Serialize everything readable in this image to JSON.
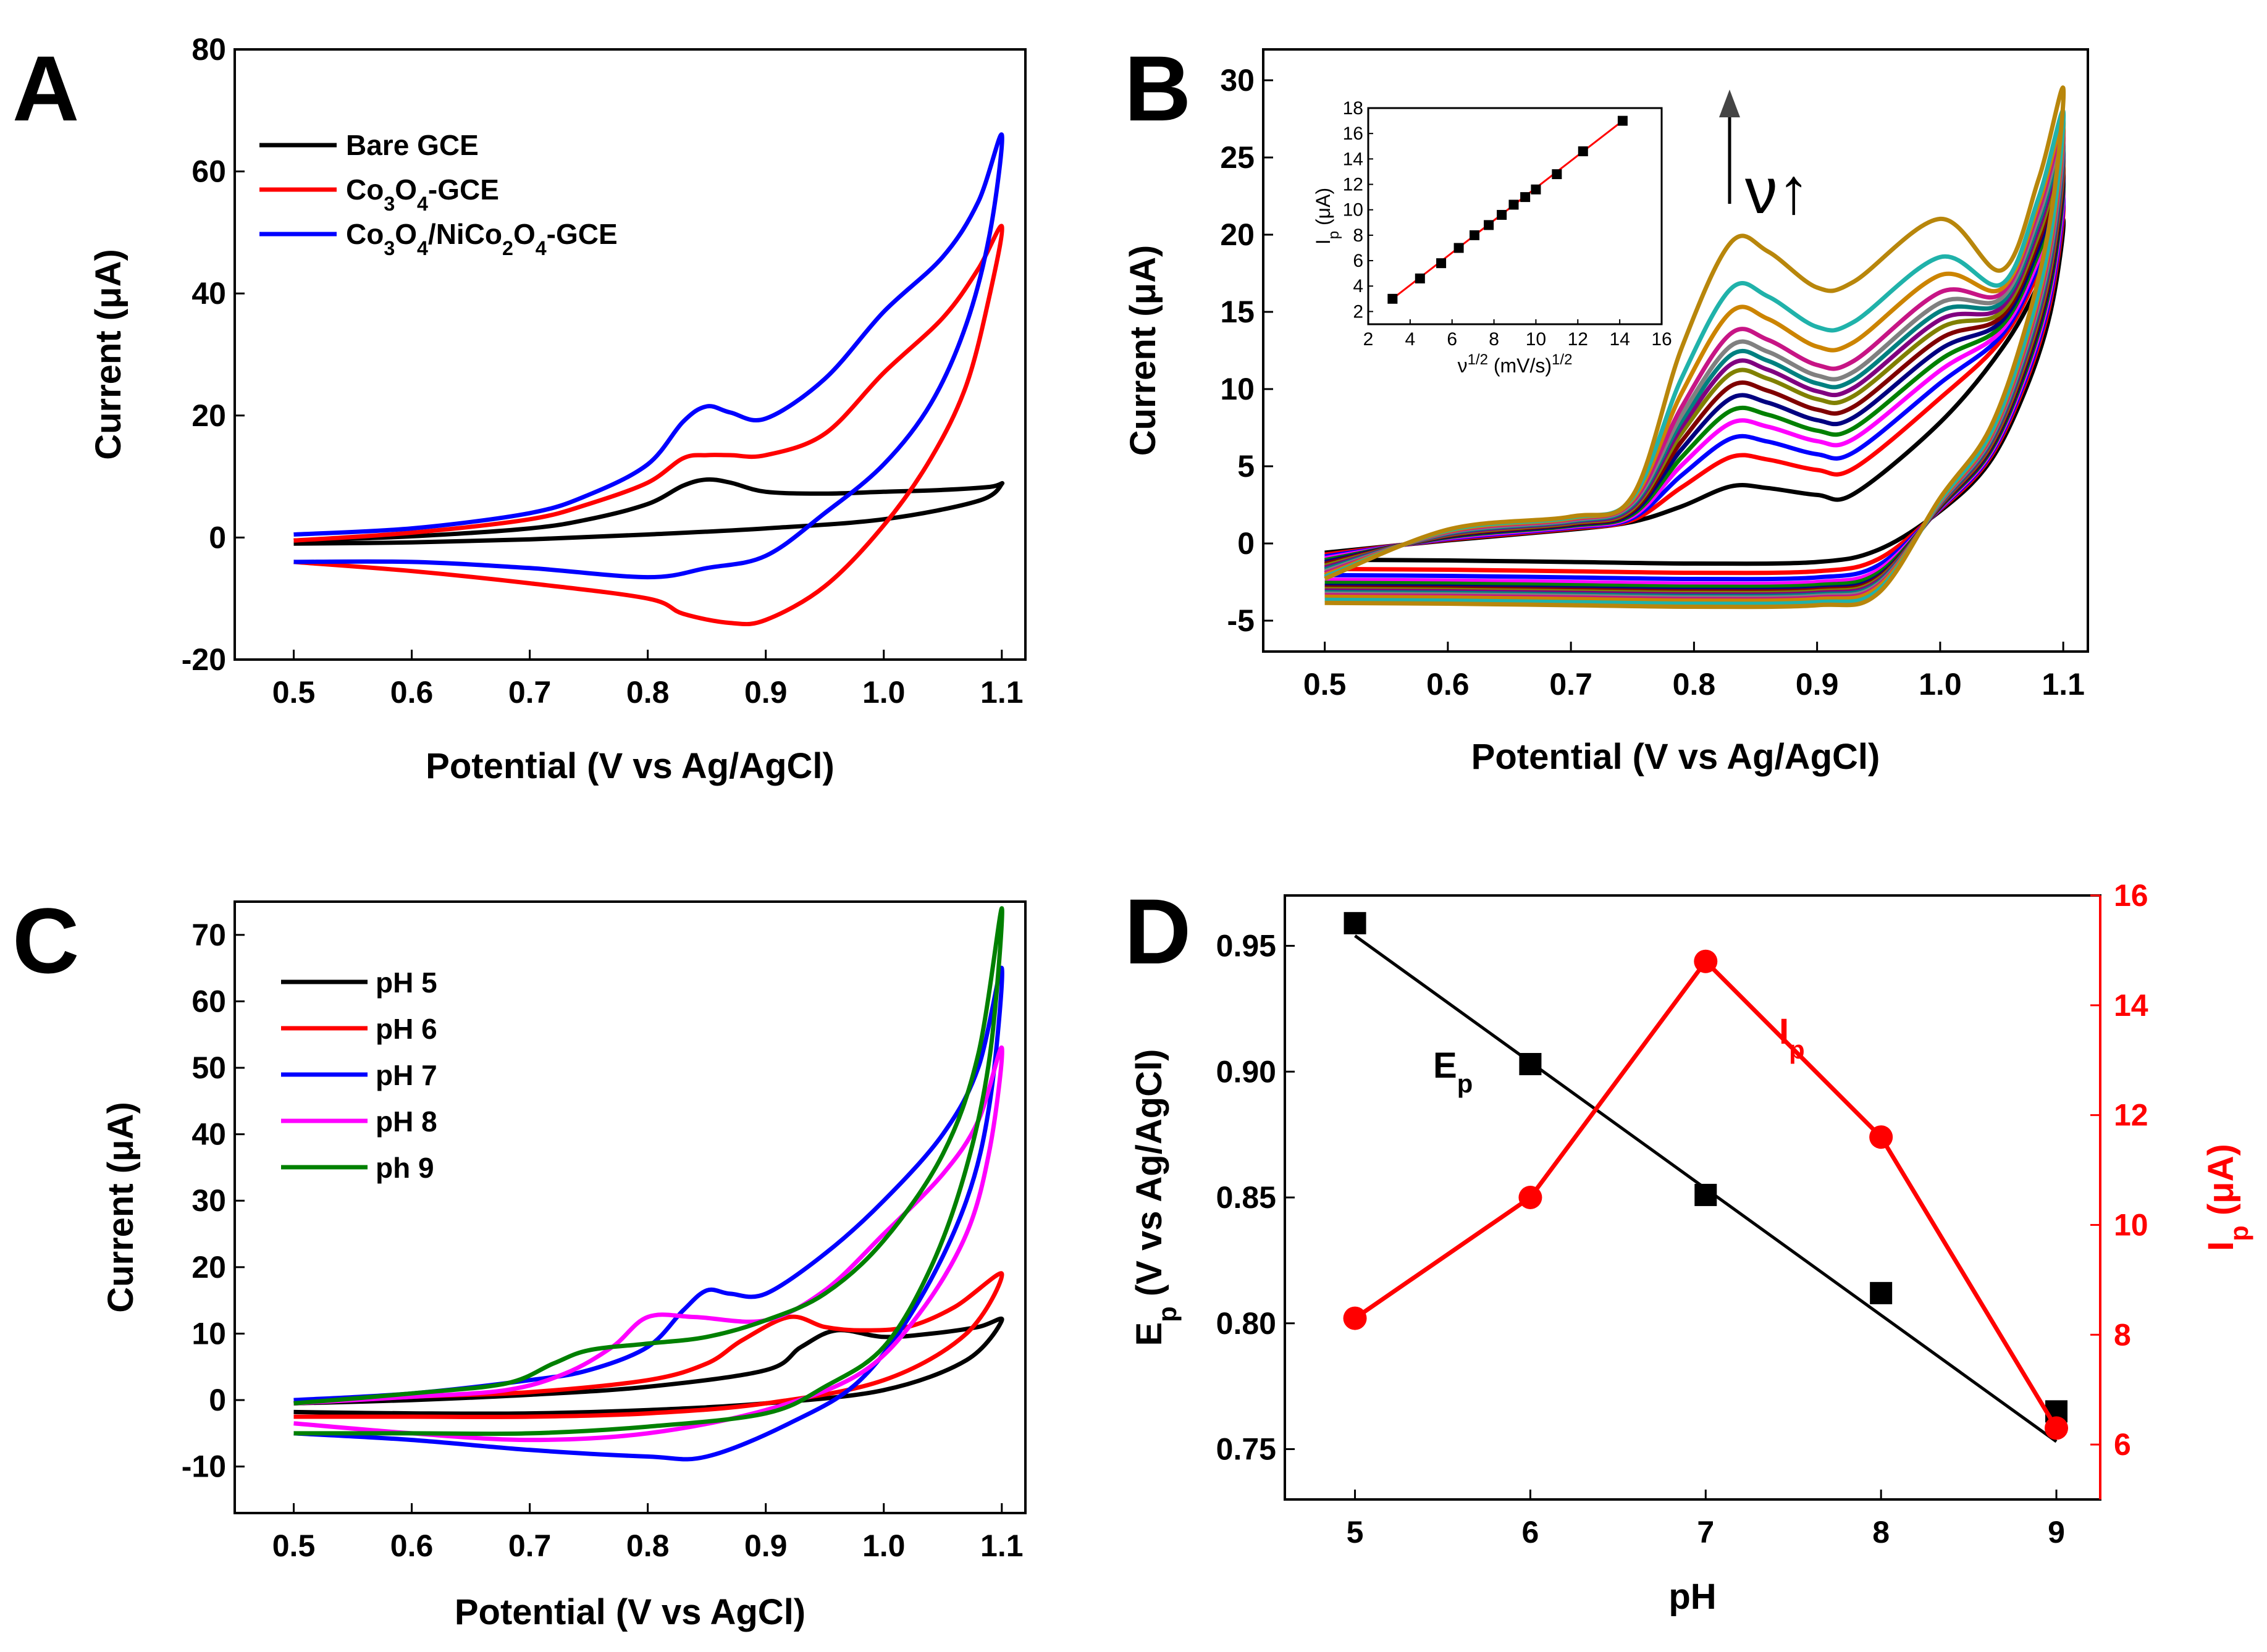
{
  "chart_data": [
    {
      "panel": "A",
      "type": "line",
      "title": "",
      "xlabel": "Potential (V vs Ag/AgCl)",
      "ylabel": "Current (μA)",
      "xlim": [
        0.45,
        1.12
      ],
      "ylim": [
        -20,
        80
      ],
      "xticks": [
        0.5,
        0.6,
        0.7,
        0.8,
        0.9,
        1.0,
        1.1
      ],
      "yticks": [
        -20,
        0,
        20,
        40,
        60,
        80
      ],
      "legend": [
        "Bare GCE",
        "Co3O4-GCE",
        "Co3O4/NiCo2O4-GCE"
      ],
      "series": [
        {
          "name": "Bare GCE",
          "color": "#000000",
          "forward": [
            [
              0.5,
              -0.5
            ],
            [
              0.6,
              0.2
            ],
            [
              0.7,
              1.5
            ],
            [
              0.75,
              3.0
            ],
            [
              0.8,
              5.5
            ],
            [
              0.83,
              8.5
            ],
            [
              0.85,
              9.5
            ],
            [
              0.87,
              9.0
            ],
            [
              0.9,
              7.5
            ],
            [
              0.95,
              7.2
            ],
            [
              1.0,
              7.5
            ],
            [
              1.05,
              7.8
            ],
            [
              1.09,
              8.3
            ],
            [
              1.1,
              8.8
            ]
          ],
          "reverse": [
            [
              1.1,
              8.8
            ],
            [
              1.08,
              6.0
            ],
            [
              1.0,
              3.0
            ],
            [
              0.9,
              1.5
            ],
            [
              0.8,
              0.5
            ],
            [
              0.7,
              -0.3
            ],
            [
              0.6,
              -0.8
            ],
            [
              0.5,
              -1.0
            ]
          ]
        },
        {
          "name": "Co3O4-GCE",
          "color": "#ff0000",
          "forward": [
            [
              0.5,
              -0.5
            ],
            [
              0.6,
              0.8
            ],
            [
              0.7,
              3.0
            ],
            [
              0.75,
              5.5
            ],
            [
              0.8,
              9.0
            ],
            [
              0.83,
              13.0
            ],
            [
              0.85,
              13.5
            ],
            [
              0.87,
              13.5
            ],
            [
              0.9,
              13.5
            ],
            [
              0.95,
              17.0
            ],
            [
              1.0,
              27.0
            ],
            [
              1.05,
              36.0
            ],
            [
              1.08,
              44.0
            ],
            [
              1.1,
              51.0
            ]
          ],
          "reverse": [
            [
              1.1,
              51.0
            ],
            [
              1.09,
              40.0
            ],
            [
              1.07,
              25.0
            ],
            [
              1.04,
              13.0
            ],
            [
              1.0,
              2.0
            ],
            [
              0.95,
              -8.0
            ],
            [
              0.9,
              -13.5
            ],
            [
              0.87,
              -14.0
            ],
            [
              0.83,
              -12.5
            ],
            [
              0.8,
              -10.0
            ],
            [
              0.7,
              -7.5
            ],
            [
              0.6,
              -5.5
            ],
            [
              0.5,
              -4.0
            ]
          ]
        },
        {
          "name": "Co3O4/NiCo2O4-GCE",
          "color": "#0000ff",
          "forward": [
            [
              0.5,
              0.5
            ],
            [
              0.6,
              1.5
            ],
            [
              0.7,
              4.0
            ],
            [
              0.75,
              7.0
            ],
            [
              0.8,
              12.0
            ],
            [
              0.83,
              19.0
            ],
            [
              0.85,
              21.5
            ],
            [
              0.87,
              20.5
            ],
            [
              0.9,
              19.5
            ],
            [
              0.95,
              26.0
            ],
            [
              1.0,
              37.0
            ],
            [
              1.05,
              46.0
            ],
            [
              1.08,
              55.0
            ],
            [
              1.1,
              66.0
            ]
          ],
          "reverse": [
            [
              1.1,
              66.0
            ],
            [
              1.09,
              50.0
            ],
            [
              1.07,
              35.0
            ],
            [
              1.04,
              22.0
            ],
            [
              1.0,
              12.0
            ],
            [
              0.95,
              4.0
            ],
            [
              0.9,
              -3.0
            ],
            [
              0.85,
              -5.0
            ],
            [
              0.8,
              -6.5
            ],
            [
              0.7,
              -5.0
            ],
            [
              0.6,
              -4.0
            ],
            [
              0.5,
              -4.0
            ]
          ]
        }
      ]
    },
    {
      "panel": "B",
      "type": "line",
      "title": "",
      "xlabel": "Potential (V vs Ag/AgCl)",
      "ylabel": "Current (μA)",
      "xlim": [
        0.45,
        1.12
      ],
      "ylim": [
        -7,
        32
      ],
      "xticks": [
        0.5,
        0.6,
        0.7,
        0.8,
        0.9,
        1.0,
        1.1
      ],
      "yticks": [
        -5,
        0,
        5,
        10,
        15,
        20,
        25,
        30
      ],
      "annotation": "ν↑",
      "series_note": "cyclic voltammograms at increasing scan rate ν",
      "curve_colors": [
        "#000000",
        "#ff0000",
        "#0000ff",
        "#ff00ff",
        "#008000",
        "#000080",
        "#800000",
        "#808000",
        "#800080",
        "#008080",
        "#808080",
        "#c71585",
        "#cc8400",
        "#20b2aa",
        "#b8860b"
      ],
      "peak_currents": [
        3.7,
        5.6,
        6.8,
        7.8,
        8.6,
        9.4,
        10.2,
        11.0,
        11.6,
        12.2,
        12.8,
        13.6,
        15.0,
        16.5,
        19.5
      ],
      "cathodic_baseline": [
        -1.2,
        -1.8,
        -2.2,
        -2.5,
        -2.7,
        -2.9,
        -3.0,
        -3.1,
        -3.2,
        -3.3,
        -3.4,
        -3.5,
        -3.6,
        -3.8,
        -4.0
      ],
      "end_currents": [
        21,
        22,
        22.5,
        23,
        23.5,
        24,
        24.5,
        25,
        25.5,
        26,
        26.5,
        27,
        27.5,
        28,
        29.5
      ],
      "inset": {
        "type": "scatter+fit",
        "xlabel": "ν1/2 (mV/s)1/2",
        "ylabel": "Ip (μA)",
        "xlim": [
          2,
          16
        ],
        "ylim": [
          1,
          18
        ],
        "xticks": [
          2,
          4,
          6,
          8,
          10,
          12,
          14,
          16
        ],
        "yticks": [
          2,
          4,
          6,
          8,
          10,
          12,
          14,
          16,
          18
        ],
        "x": [
          3.16,
          4.47,
          5.48,
          6.32,
          7.07,
          7.75,
          8.37,
          8.94,
          9.49,
          10.0,
          11.0,
          12.25,
          14.14
        ],
        "y": [
          3.0,
          4.6,
          5.8,
          7.0,
          8.0,
          8.8,
          9.6,
          10.4,
          11.0,
          11.6,
          12.8,
          14.6,
          17.0
        ],
        "fit_color": "#ff0000"
      }
    },
    {
      "panel": "C",
      "type": "line",
      "title": "",
      "xlabel": "Potential (V vs AgCl)",
      "ylabel": "Current (μA)",
      "xlim": [
        0.45,
        1.12
      ],
      "ylim": [
        -17,
        75
      ],
      "xticks": [
        0.5,
        0.6,
        0.7,
        0.8,
        0.9,
        1.0,
        1.1
      ],
      "yticks": [
        -10,
        0,
        10,
        20,
        30,
        40,
        50,
        60,
        70
      ],
      "legend": [
        "pH 5",
        "pH 6",
        "pH 7",
        "pH 8",
        "ph 9"
      ],
      "series": [
        {
          "name": "pH 5",
          "color": "#000000",
          "forward": [
            [
              0.5,
              -0.5
            ],
            [
              0.6,
              0.0
            ],
            [
              0.7,
              0.8
            ],
            [
              0.8,
              2.0
            ],
            [
              0.9,
              4.5
            ],
            [
              0.93,
              8.0
            ],
            [
              0.96,
              10.5
            ],
            [
              1.0,
              9.5
            ],
            [
              1.04,
              10.0
            ],
            [
              1.08,
              11.0
            ],
            [
              1.1,
              12.0
            ]
          ],
          "reverse": [
            [
              1.1,
              12.0
            ],
            [
              1.07,
              6.0
            ],
            [
              1.0,
              1.5
            ],
            [
              0.9,
              -0.5
            ],
            [
              0.8,
              -1.5
            ],
            [
              0.7,
              -2.0
            ],
            [
              0.6,
              -2.0
            ],
            [
              0.5,
              -1.8
            ]
          ]
        },
        {
          "name": "pH 6",
          "color": "#ff0000",
          "forward": [
            [
              0.5,
              -0.5
            ],
            [
              0.6,
              0.5
            ],
            [
              0.7,
              1.2
            ],
            [
              0.8,
              3.0
            ],
            [
              0.85,
              5.5
            ],
            [
              0.88,
              9.0
            ],
            [
              0.92,
              12.5
            ],
            [
              0.95,
              11.0
            ],
            [
              0.98,
              10.5
            ],
            [
              1.02,
              11.0
            ],
            [
              1.06,
              14.0
            ],
            [
              1.1,
              19.0
            ]
          ],
          "reverse": [
            [
              1.1,
              19.0
            ],
            [
              1.07,
              10.0
            ],
            [
              1.0,
              3.0
            ],
            [
              0.9,
              -0.5
            ],
            [
              0.8,
              -2.0
            ],
            [
              0.7,
              -2.5
            ],
            [
              0.6,
              -2.5
            ],
            [
              0.5,
              -2.5
            ]
          ]
        },
        {
          "name": "pH 7",
          "color": "#0000ff",
          "forward": [
            [
              0.5,
              0.0
            ],
            [
              0.6,
              1.0
            ],
            [
              0.7,
              3.0
            ],
            [
              0.75,
              4.5
            ],
            [
              0.8,
              8.0
            ],
            [
              0.83,
              13.5
            ],
            [
              0.85,
              16.5
            ],
            [
              0.87,
              16.0
            ],
            [
              0.9,
              16.0
            ],
            [
              0.95,
              22.0
            ],
            [
              1.0,
              30.0
            ],
            [
              1.05,
              40.0
            ],
            [
              1.08,
              50.0
            ],
            [
              1.1,
              65.0
            ]
          ],
          "reverse": [
            [
              1.1,
              65.0
            ],
            [
              1.09,
              45.0
            ],
            [
              1.07,
              30.0
            ],
            [
              1.03,
              15.0
            ],
            [
              0.98,
              3.0
            ],
            [
              0.92,
              -3.5
            ],
            [
              0.85,
              -8.5
            ],
            [
              0.8,
              -8.5
            ],
            [
              0.7,
              -7.5
            ],
            [
              0.6,
              -6.0
            ],
            [
              0.5,
              -5.0
            ]
          ]
        },
        {
          "name": "pH 8",
          "color": "#ff00ff",
          "forward": [
            [
              0.5,
              -0.5
            ],
            [
              0.6,
              0.5
            ],
            [
              0.68,
              1.5
            ],
            [
              0.73,
              4.0
            ],
            [
              0.77,
              8.0
            ],
            [
              0.8,
              12.5
            ],
            [
              0.84,
              12.5
            ],
            [
              0.9,
              12.0
            ],
            [
              0.95,
              16.5
            ],
            [
              1.0,
              25.0
            ],
            [
              1.05,
              34.0
            ],
            [
              1.08,
              42.0
            ],
            [
              1.1,
              53.0
            ]
          ],
          "reverse": [
            [
              1.1,
              53.0
            ],
            [
              1.09,
              38.0
            ],
            [
              1.07,
              25.0
            ],
            [
              1.03,
              13.0
            ],
            [
              0.98,
              4.0
            ],
            [
              0.9,
              -1.5
            ],
            [
              0.8,
              -5.0
            ],
            [
              0.7,
              -6.0
            ],
            [
              0.6,
              -5.0
            ],
            [
              0.5,
              -3.5
            ]
          ]
        },
        {
          "name": "ph 9",
          "color": "#008000",
          "forward": [
            [
              0.5,
              -0.5
            ],
            [
              0.6,
              1.0
            ],
            [
              0.68,
              2.5
            ],
            [
              0.72,
              5.5
            ],
            [
              0.75,
              7.5
            ],
            [
              0.8,
              8.5
            ],
            [
              0.85,
              9.5
            ],
            [
              0.9,
              12.0
            ],
            [
              0.95,
              16.0
            ],
            [
              1.0,
              24.0
            ],
            [
              1.05,
              37.0
            ],
            [
              1.08,
              52.0
            ],
            [
              1.1,
              74.0
            ]
          ],
          "reverse": [
            [
              1.1,
              74.0
            ],
            [
              1.09,
              52.0
            ],
            [
              1.07,
              35.0
            ],
            [
              1.04,
              20.0
            ],
            [
              1.0,
              8.0
            ],
            [
              0.95,
              2.0
            ],
            [
              0.9,
              -2.0
            ],
            [
              0.8,
              -4.0
            ],
            [
              0.7,
              -5.0
            ],
            [
              0.6,
              -5.0
            ],
            [
              0.5,
              -5.0
            ]
          ]
        }
      ]
    },
    {
      "panel": "D",
      "type": "scatter+line",
      "title": "",
      "xlabel": "pH",
      "ylabel": "Ep (V vs Ag/AgCl)",
      "ylabel_right": "Ip (μA)",
      "xlim": [
        4.6,
        9.25
      ],
      "ylim": [
        0.73,
        0.97
      ],
      "ylim_right": [
        5,
        16
      ],
      "xticks": [
        5,
        6,
        7,
        8,
        9
      ],
      "yticks": [
        0.75,
        0.8,
        0.85,
        0.9,
        0.95
      ],
      "yticks_right": [
        6,
        8,
        10,
        12,
        14,
        16
      ],
      "series": [
        {
          "name": "Ep",
          "color": "#000000",
          "axis": "left",
          "x": [
            5,
            6,
            7,
            8,
            9
          ],
          "y": [
            0.959,
            0.903,
            0.851,
            0.812,
            0.765
          ],
          "fit": [
            [
              5,
              0.954
            ],
            [
              9,
              0.753
            ]
          ]
        },
        {
          "name": "Ip",
          "color": "#ff0000",
          "axis": "right",
          "x": [
            5,
            6,
            7,
            8,
            9
          ],
          "y": [
            8.3,
            10.5,
            14.8,
            11.6,
            6.3
          ]
        }
      ]
    }
  ]
}
